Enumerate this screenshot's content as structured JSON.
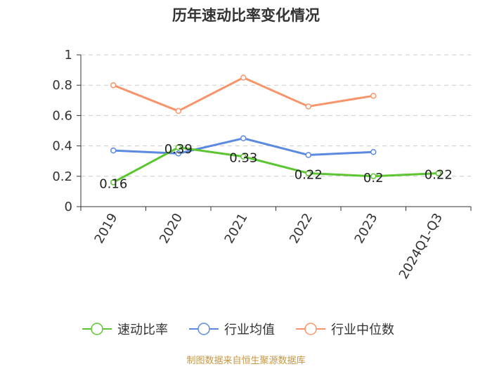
{
  "chart_data": {
    "type": "line",
    "title": "历年速动比率变化情况",
    "categories": [
      "2019",
      "2020",
      "2021",
      "2022",
      "2023",
      "2024Q1-Q3"
    ],
    "ylim": [
      0,
      1
    ],
    "yticks": [
      "0",
      "0.2",
      "0.4",
      "0.6",
      "0.8",
      "1"
    ],
    "grid": true,
    "legend_position": "bottom",
    "series": [
      {
        "name": "速动比率",
        "color": "#5cc630",
        "values": [
          0.16,
          0.39,
          0.33,
          0.22,
          0.2,
          0.22
        ],
        "labels": [
          "0.16",
          "0.39",
          "0.33",
          "0.22",
          "0.2",
          "0.22"
        ]
      },
      {
        "name": "行业均值",
        "color": "#5b8ae0",
        "values": [
          0.37,
          0.35,
          0.45,
          0.34,
          0.36,
          null
        ]
      },
      {
        "name": "行业中位数",
        "color": "#f7956a",
        "values": [
          0.8,
          0.63,
          0.85,
          0.66,
          0.73,
          null
        ]
      }
    ]
  },
  "source": "制图数据来自恒生聚源数据库"
}
